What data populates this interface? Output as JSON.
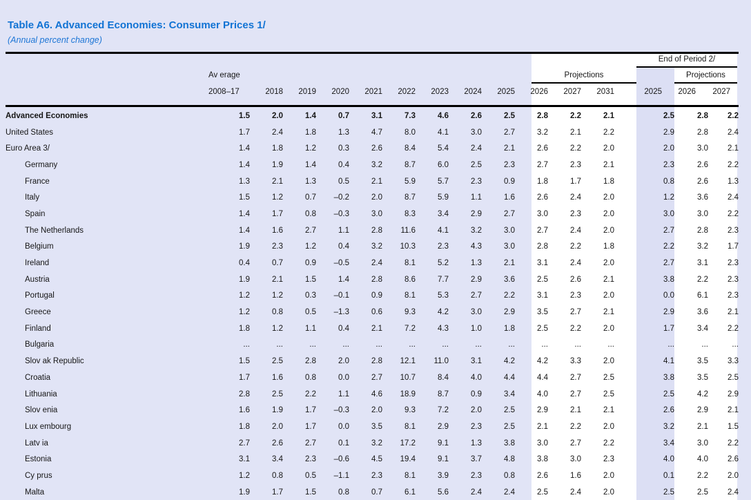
{
  "title": "Table A6. Advanced Economies: Consumer Prices 1/",
  "subtitle": "(Annual percent change)",
  "colors": {
    "page_background": "#e1e4f6",
    "projection_band": "#ffffff",
    "end_of_period_2025_band": "#dcdff4",
    "title_blue": "#1173d4",
    "rule_black": "#000000",
    "text": "#161616"
  },
  "header": {
    "average_label": "Av erage",
    "average_period": "2008–17",
    "years": [
      "2018",
      "2019",
      "2020",
      "2021",
      "2022",
      "2023",
      "2024",
      "2025"
    ],
    "projections_label": "Projections",
    "projection_years": [
      "2026",
      "2027",
      "2031"
    ],
    "end_of_period_label": "End of Period 2/",
    "eop_projections_label": "Projections",
    "eop_years": [
      "2025",
      "2026",
      "2027"
    ]
  },
  "table": {
    "rows": [
      {
        "label": "Advanced Economies",
        "bold": true,
        "indent": false,
        "values": [
          "1.5",
          "2.0",
          "1.4",
          "0.7",
          "3.1",
          "7.3",
          "4.6",
          "2.6",
          "2.5",
          "2.8",
          "2.2",
          "2.1",
          "2.5",
          "2.8",
          "2.2"
        ]
      },
      {
        "label": "United States",
        "bold": false,
        "indent": false,
        "values": [
          "1.7",
          "2.4",
          "1.8",
          "1.3",
          "4.7",
          "8.0",
          "4.1",
          "3.0",
          "2.7",
          "3.2",
          "2.1",
          "2.2",
          "2.9",
          "2.8",
          "2.4"
        ]
      },
      {
        "label": "Euro Area 3/",
        "bold": false,
        "indent": false,
        "values": [
          "1.4",
          "1.8",
          "1.2",
          "0.3",
          "2.6",
          "8.4",
          "5.4",
          "2.4",
          "2.1",
          "2.6",
          "2.2",
          "2.0",
          "2.0",
          "3.0",
          "2.1"
        ]
      },
      {
        "label": "Germany",
        "bold": false,
        "indent": true,
        "values": [
          "1.4",
          "1.9",
          "1.4",
          "0.4",
          "3.2",
          "8.7",
          "6.0",
          "2.5",
          "2.3",
          "2.7",
          "2.3",
          "2.1",
          "2.3",
          "2.6",
          "2.2"
        ]
      },
      {
        "label": "France",
        "bold": false,
        "indent": true,
        "values": [
          "1.3",
          "2.1",
          "1.3",
          "0.5",
          "2.1",
          "5.9",
          "5.7",
          "2.3",
          "0.9",
          "1.8",
          "1.7",
          "1.8",
          "0.8",
          "2.6",
          "1.3"
        ]
      },
      {
        "label": "Italy",
        "bold": false,
        "indent": true,
        "values": [
          "1.5",
          "1.2",
          "0.7",
          "–0.2",
          "2.0",
          "8.7",
          "5.9",
          "1.1",
          "1.6",
          "2.6",
          "2.4",
          "2.0",
          "1.2",
          "3.6",
          "2.4"
        ]
      },
      {
        "label": "Spain",
        "bold": false,
        "indent": true,
        "values": [
          "1.4",
          "1.7",
          "0.8",
          "–0.3",
          "3.0",
          "8.3",
          "3.4",
          "2.9",
          "2.7",
          "3.0",
          "2.3",
          "2.0",
          "3.0",
          "3.0",
          "2.2"
        ]
      },
      {
        "label": "The Netherlands",
        "bold": false,
        "indent": true,
        "values": [
          "1.4",
          "1.6",
          "2.7",
          "1.1",
          "2.8",
          "11.6",
          "4.1",
          "3.2",
          "3.0",
          "2.7",
          "2.4",
          "2.0",
          "2.7",
          "2.8",
          "2.3"
        ]
      },
      {
        "label": "Belgium",
        "bold": false,
        "indent": true,
        "values": [
          "1.9",
          "2.3",
          "1.2",
          "0.4",
          "3.2",
          "10.3",
          "2.3",
          "4.3",
          "3.0",
          "2.8",
          "2.2",
          "1.8",
          "2.2",
          "3.2",
          "1.7"
        ]
      },
      {
        "label": "Ireland",
        "bold": false,
        "indent": true,
        "values": [
          "0.4",
          "0.7",
          "0.9",
          "–0.5",
          "2.4",
          "8.1",
          "5.2",
          "1.3",
          "2.1",
          "3.1",
          "2.4",
          "2.0",
          "2.7",
          "3.1",
          "2.3"
        ]
      },
      {
        "label": "Austria",
        "bold": false,
        "indent": true,
        "values": [
          "1.9",
          "2.1",
          "1.5",
          "1.4",
          "2.8",
          "8.6",
          "7.7",
          "2.9",
          "3.6",
          "2.5",
          "2.6",
          "2.1",
          "3.8",
          "2.2",
          "2.3"
        ]
      },
      {
        "label": "Portugal",
        "bold": false,
        "indent": true,
        "values": [
          "1.2",
          "1.2",
          "0.3",
          "–0.1",
          "0.9",
          "8.1",
          "5.3",
          "2.7",
          "2.2",
          "3.1",
          "2.3",
          "2.0",
          "0.0",
          "6.1",
          "2.3"
        ]
      },
      {
        "label": "Greece",
        "bold": false,
        "indent": true,
        "values": [
          "1.2",
          "0.8",
          "0.5",
          "–1.3",
          "0.6",
          "9.3",
          "4.2",
          "3.0",
          "2.9",
          "3.5",
          "2.7",
          "2.1",
          "2.9",
          "3.6",
          "2.1"
        ]
      },
      {
        "label": "Finland",
        "bold": false,
        "indent": true,
        "values": [
          "1.8",
          "1.2",
          "1.1",
          "0.4",
          "2.1",
          "7.2",
          "4.3",
          "1.0",
          "1.8",
          "2.5",
          "2.2",
          "2.0",
          "1.7",
          "3.4",
          "2.2"
        ]
      },
      {
        "label": "Bulgaria",
        "bold": false,
        "indent": true,
        "values": [
          "...",
          "...",
          "...",
          "...",
          "...",
          "...",
          "...",
          "...",
          "...",
          "...",
          "...",
          "...",
          "...",
          "...",
          "..."
        ]
      },
      {
        "label": "Slov ak Republic",
        "bold": false,
        "indent": true,
        "values": [
          "1.5",
          "2.5",
          "2.8",
          "2.0",
          "2.8",
          "12.1",
          "11.0",
          "3.1",
          "4.2",
          "4.2",
          "3.3",
          "2.0",
          "4.1",
          "3.5",
          "3.3"
        ]
      },
      {
        "label": "Croatia",
        "bold": false,
        "indent": true,
        "values": [
          "1.7",
          "1.6",
          "0.8",
          "0.0",
          "2.7",
          "10.7",
          "8.4",
          "4.0",
          "4.4",
          "4.4",
          "2.7",
          "2.5",
          "3.8",
          "3.5",
          "2.5"
        ]
      },
      {
        "label": "Lithuania",
        "bold": false,
        "indent": true,
        "values": [
          "2.8",
          "2.5",
          "2.2",
          "1.1",
          "4.6",
          "18.9",
          "8.7",
          "0.9",
          "3.4",
          "4.0",
          "2.7",
          "2.5",
          "2.5",
          "4.2",
          "2.9"
        ]
      },
      {
        "label": "Slov enia",
        "bold": false,
        "indent": true,
        "values": [
          "1.6",
          "1.9",
          "1.7",
          "–0.3",
          "2.0",
          "9.3",
          "7.2",
          "2.0",
          "2.5",
          "2.9",
          "2.1",
          "2.1",
          "2.6",
          "2.9",
          "2.1"
        ]
      },
      {
        "label": "Lux embourg",
        "bold": false,
        "indent": true,
        "values": [
          "1.8",
          "2.0",
          "1.7",
          "0.0",
          "3.5",
          "8.1",
          "2.9",
          "2.3",
          "2.5",
          "2.1",
          "2.2",
          "2.0",
          "3.2",
          "2.1",
          "1.5"
        ]
      },
      {
        "label": "Latv ia",
        "bold": false,
        "indent": true,
        "values": [
          "2.7",
          "2.6",
          "2.7",
          "0.1",
          "3.2",
          "17.2",
          "9.1",
          "1.3",
          "3.8",
          "3.0",
          "2.7",
          "2.2",
          "3.4",
          "3.0",
          "2.2"
        ]
      },
      {
        "label": "Estonia",
        "bold": false,
        "indent": true,
        "values": [
          "3.1",
          "3.4",
          "2.3",
          "–0.6",
          "4.5",
          "19.4",
          "9.1",
          "3.7",
          "4.8",
          "3.8",
          "3.0",
          "2.3",
          "4.0",
          "4.0",
          "2.6"
        ]
      },
      {
        "label": "Cy prus",
        "bold": false,
        "indent": true,
        "values": [
          "1.2",
          "0.8",
          "0.5",
          "–1.1",
          "2.3",
          "8.1",
          "3.9",
          "2.3",
          "0.8",
          "2.6",
          "1.6",
          "2.0",
          "0.1",
          "2.2",
          "2.0"
        ]
      },
      {
        "label": "Malta",
        "bold": false,
        "indent": true,
        "values": [
          "1.9",
          "1.7",
          "1.5",
          "0.8",
          "0.7",
          "6.1",
          "5.6",
          "2.4",
          "2.4",
          "2.5",
          "2.4",
          "2.0",
          "2.5",
          "2.5",
          "2.4"
        ]
      }
    ]
  }
}
